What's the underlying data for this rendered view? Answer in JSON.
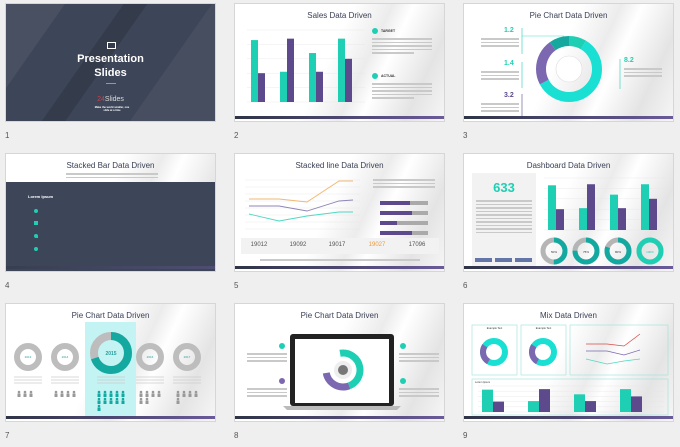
{
  "colors": {
    "teal": "#1fcfb4",
    "purple": "#5c4a8c",
    "navy": "#3d4558",
    "orange": "#f29a3a",
    "bg": "#efefef"
  },
  "slides": [
    {
      "number": "1",
      "title_line1": "Presentation",
      "title_line2": "Slides",
      "logo": "24Slides",
      "logo_prefix": "24",
      "logo_suffix": "Slides",
      "tagline": "Make the world smaller, one slide at a time",
      "icon": "presentation-board-icon"
    },
    {
      "number": "2",
      "title": "Sales Data Driven",
      "legend": [
        "TARGET",
        "ACTUAL"
      ],
      "chart_values": {
        "teal": [
          4.3,
          2.1,
          3.4,
          4.4
        ],
        "purple": [
          2.0,
          4.4,
          2.1,
          3.0
        ],
        "ymax": 5
      }
    },
    {
      "number": "3",
      "title": "Pie Chart Data Driven",
      "values": [
        "1.2",
        "1.4",
        "3.2",
        "8.2"
      ],
      "donut": [
        1.2,
        1.4,
        3.2,
        8.2
      ]
    },
    {
      "number": "4",
      "title": "Stacked Bar Data Driven",
      "heading": "Lorem Ipsum"
    },
    {
      "number": "5",
      "title": "Stacked line Data Driven",
      "stats": [
        "19012",
        "19092",
        "19017",
        "19027",
        "17096"
      ]
    },
    {
      "number": "6",
      "title": "Dashboard Data Driven",
      "big_value": "633",
      "donuts": [
        "50%",
        "75%",
        "80%",
        "100%"
      ],
      "donut_values": [
        0.5,
        0.75,
        0.8,
        1.0
      ],
      "chart_values": {
        "teal": [
          4.3,
          2.1,
          3.4,
          4.4
        ],
        "purple": [
          2.0,
          4.4,
          2.1,
          3.0
        ],
        "ymax": 5
      }
    },
    {
      "number": "7",
      "title": "Pie Chart Data Driven",
      "years": [
        "2013",
        "2014",
        "2015",
        "2016",
        "2017"
      ],
      "people": [
        3,
        4,
        11,
        6,
        5
      ]
    },
    {
      "number": "8",
      "title": "Pie Chart Data Driven"
    },
    {
      "number": "9",
      "title": "Mix Data Driven",
      "box_titles": [
        "Example Text",
        "Example Text"
      ],
      "bar_heading": "Lorem Ipsum",
      "chart_values": {
        "teal": [
          4.3,
          2.1,
          3.4,
          4.4
        ],
        "purple": [
          2.0,
          4.4,
          2.1,
          3.0
        ],
        "ymax": 5
      }
    }
  ]
}
